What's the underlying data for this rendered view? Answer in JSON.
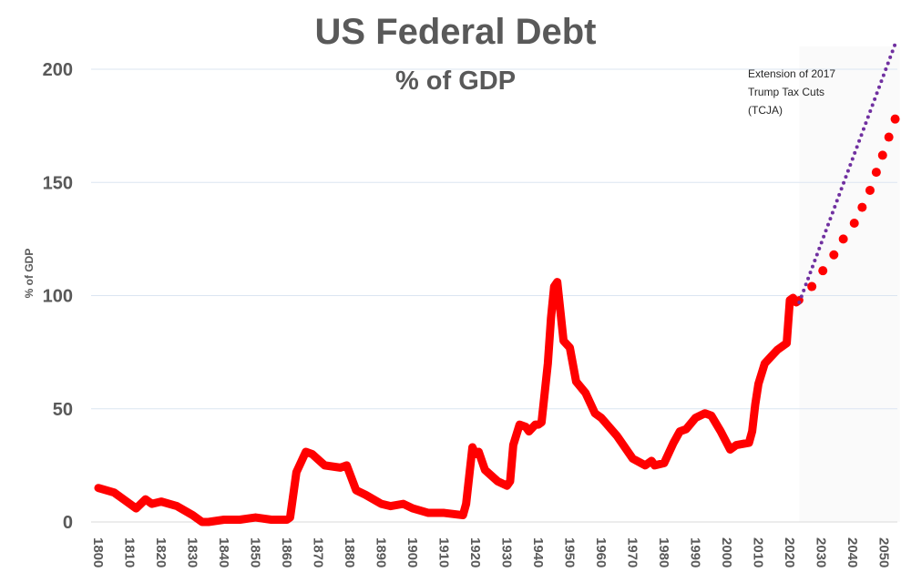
{
  "chart_data": {
    "type": "line",
    "title": "US Federal Debt",
    "subtitle": "% of GDP",
    "xlabel": "",
    "ylabel": "% of GDP",
    "xlim": [
      1800,
      2055
    ],
    "ylim": [
      0,
      210
    ],
    "yticks": [
      0,
      50,
      100,
      150,
      200
    ],
    "xticks": [
      1800,
      1810,
      1820,
      1830,
      1840,
      1850,
      1860,
      1870,
      1880,
      1890,
      1900,
      1910,
      1920,
      1930,
      1940,
      1950,
      1960,
      1970,
      1980,
      1990,
      2000,
      2010,
      2020,
      2030,
      2040,
      2050
    ],
    "grid": "horizontal",
    "colors": {
      "historical": "#ff0000",
      "projection": "#ff0000",
      "tcja": "#7030a0",
      "text": "#595959",
      "grid": "#dbe5f1"
    },
    "series": [
      {
        "style": "solid-line",
        "x": [
          1800,
          1805,
          1808,
          1810,
          1812,
          1815,
          1817,
          1820,
          1825,
          1830,
          1833,
          1835,
          1840,
          1845,
          1850,
          1855,
          1860,
          1861,
          1863,
          1866,
          1868,
          1872,
          1877,
          1879,
          1882,
          1885,
          1890,
          1893,
          1897,
          1900,
          1905,
          1910,
          1916,
          1917,
          1919,
          1920,
          1921,
          1923,
          1927,
          1930,
          1931,
          1932,
          1934,
          1936,
          1937,
          1939,
          1940,
          1941,
          1943,
          1944,
          1945,
          1946,
          1947,
          1948,
          1950,
          1952,
          1955,
          1958,
          1960,
          1965,
          1970,
          1974,
          1976,
          1977,
          1980,
          1983,
          1985,
          1987,
          1990,
          1993,
          1995,
          1998,
          2001,
          2003,
          2007,
          2008,
          2009,
          2010,
          2012,
          2014,
          2016,
          2019,
          2020,
          2021,
          2022,
          2023
        ],
        "y": [
          15,
          13,
          10,
          8,
          6,
          10,
          8,
          9,
          7,
          3,
          0,
          0,
          1,
          1,
          2,
          1,
          1,
          2,
          22,
          31,
          30,
          25,
          24,
          25,
          14,
          12,
          8,
          7,
          8,
          6,
          4,
          4,
          3,
          8,
          33,
          30,
          31,
          23,
          18,
          16,
          18,
          34,
          43,
          42,
          40,
          43,
          43,
          44,
          70,
          90,
          104,
          106,
          93,
          80,
          77,
          62,
          57,
          48,
          46,
          38,
          28,
          25,
          27,
          25,
          26,
          35,
          40,
          41,
          46,
          48,
          47,
          40,
          32,
          34,
          35,
          40,
          52,
          61,
          70,
          73,
          76,
          79,
          98,
          99,
          97,
          98
        ]
      },
      {
        "style": "large-dots",
        "x": [
          2027,
          2030.5,
          2034,
          2037,
          2040.5,
          2043,
          2045.5,
          2047.5,
          2049.5,
          2051.5,
          2053.5
        ],
        "y": [
          104,
          111,
          118,
          125,
          132,
          139,
          146.5,
          154.5,
          162,
          170,
          178
        ]
      },
      {
        "style": "small-dots",
        "x": [
          2023,
          2054
        ],
        "y": [
          97,
          213
        ]
      }
    ],
    "annotations": [
      {
        "lines": [
          "Extension of 2017",
          "Trump Tax Cuts",
          "(TCJA)"
        ]
      }
    ]
  }
}
